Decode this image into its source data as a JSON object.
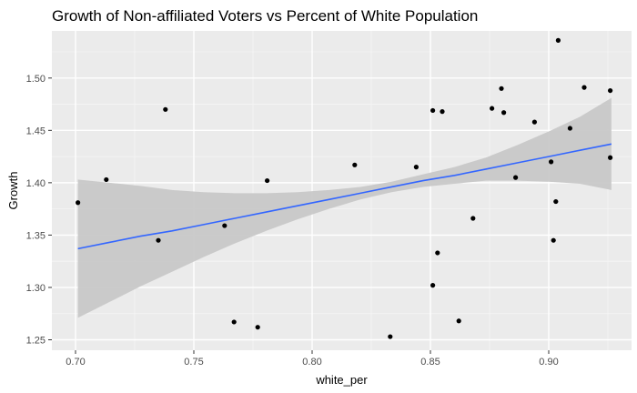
{
  "chart_data": {
    "type": "scatter",
    "title": "Growth of Non-affiliated Voters vs Percent of White Population",
    "xlabel": "white_per",
    "ylabel": "Growth",
    "xlim": [
      0.69,
      0.935
    ],
    "ylim": [
      1.24,
      1.545
    ],
    "x_ticks": [
      0.7,
      0.75,
      0.8,
      0.85,
      0.9
    ],
    "x_tick_labels": [
      "0.70",
      "0.75",
      "0.80",
      "0.85",
      "0.90"
    ],
    "y_ticks": [
      1.25,
      1.3,
      1.35,
      1.4,
      1.45,
      1.5
    ],
    "y_tick_labels": [
      "1.25",
      "1.30",
      "1.35",
      "1.40",
      "1.45",
      "1.50"
    ],
    "grid": true,
    "points": [
      {
        "x": 0.701,
        "y": 1.381
      },
      {
        "x": 0.713,
        "y": 1.403
      },
      {
        "x": 0.735,
        "y": 1.345
      },
      {
        "x": 0.738,
        "y": 1.47
      },
      {
        "x": 0.763,
        "y": 1.359
      },
      {
        "x": 0.767,
        "y": 1.267
      },
      {
        "x": 0.777,
        "y": 1.262
      },
      {
        "x": 0.781,
        "y": 1.402
      },
      {
        "x": 0.818,
        "y": 1.417
      },
      {
        "x": 0.833,
        "y": 1.253
      },
      {
        "x": 0.844,
        "y": 1.415
      },
      {
        "x": 0.851,
        "y": 1.469
      },
      {
        "x": 0.851,
        "y": 1.302
      },
      {
        "x": 0.853,
        "y": 1.333
      },
      {
        "x": 0.855,
        "y": 1.468
      },
      {
        "x": 0.862,
        "y": 1.268
      },
      {
        "x": 0.868,
        "y": 1.366
      },
      {
        "x": 0.876,
        "y": 1.471
      },
      {
        "x": 0.88,
        "y": 1.49
      },
      {
        "x": 0.881,
        "y": 1.467
      },
      {
        "x": 0.886,
        "y": 1.405
      },
      {
        "x": 0.894,
        "y": 1.458
      },
      {
        "x": 0.901,
        "y": 1.42
      },
      {
        "x": 0.902,
        "y": 1.345
      },
      {
        "x": 0.903,
        "y": 1.382
      },
      {
        "x": 0.904,
        "y": 1.536
      },
      {
        "x": 0.909,
        "y": 1.452
      },
      {
        "x": 0.915,
        "y": 1.491
      },
      {
        "x": 0.926,
        "y": 1.488
      },
      {
        "x": 0.926,
        "y": 1.424
      }
    ],
    "fit_line": {
      "x": [
        0.701,
        0.7143,
        0.7275,
        0.7408,
        0.7541,
        0.7673,
        0.7806,
        0.7938,
        0.8071,
        0.8204,
        0.8336,
        0.8469,
        0.8602,
        0.8734,
        0.8867,
        0.9,
        0.9132,
        0.9265
      ],
      "y": [
        1.337,
        1.343,
        1.349,
        1.354,
        1.36,
        1.366,
        1.372,
        1.378,
        1.384,
        1.39,
        1.396,
        1.402,
        1.407,
        1.413,
        1.419,
        1.425,
        1.431,
        1.437
      ],
      "lower": [
        1.271,
        1.286,
        1.301,
        1.315,
        1.329,
        1.342,
        1.354,
        1.365,
        1.375,
        1.384,
        1.391,
        1.396,
        1.399,
        1.402,
        1.402,
        1.401,
        1.399,
        1.393
      ],
      "upper": [
        1.403,
        1.4,
        1.397,
        1.393,
        1.391,
        1.39,
        1.39,
        1.391,
        1.393,
        1.396,
        1.401,
        1.408,
        1.415,
        1.424,
        1.436,
        1.449,
        1.463,
        1.481
      ]
    },
    "colors": {
      "panel": "#ebebeb",
      "grid_major": "#ffffff",
      "grid_minor": "#f5f5f5",
      "points": "#000000",
      "line": "#3366ff",
      "band": "#c8c8c8"
    }
  }
}
